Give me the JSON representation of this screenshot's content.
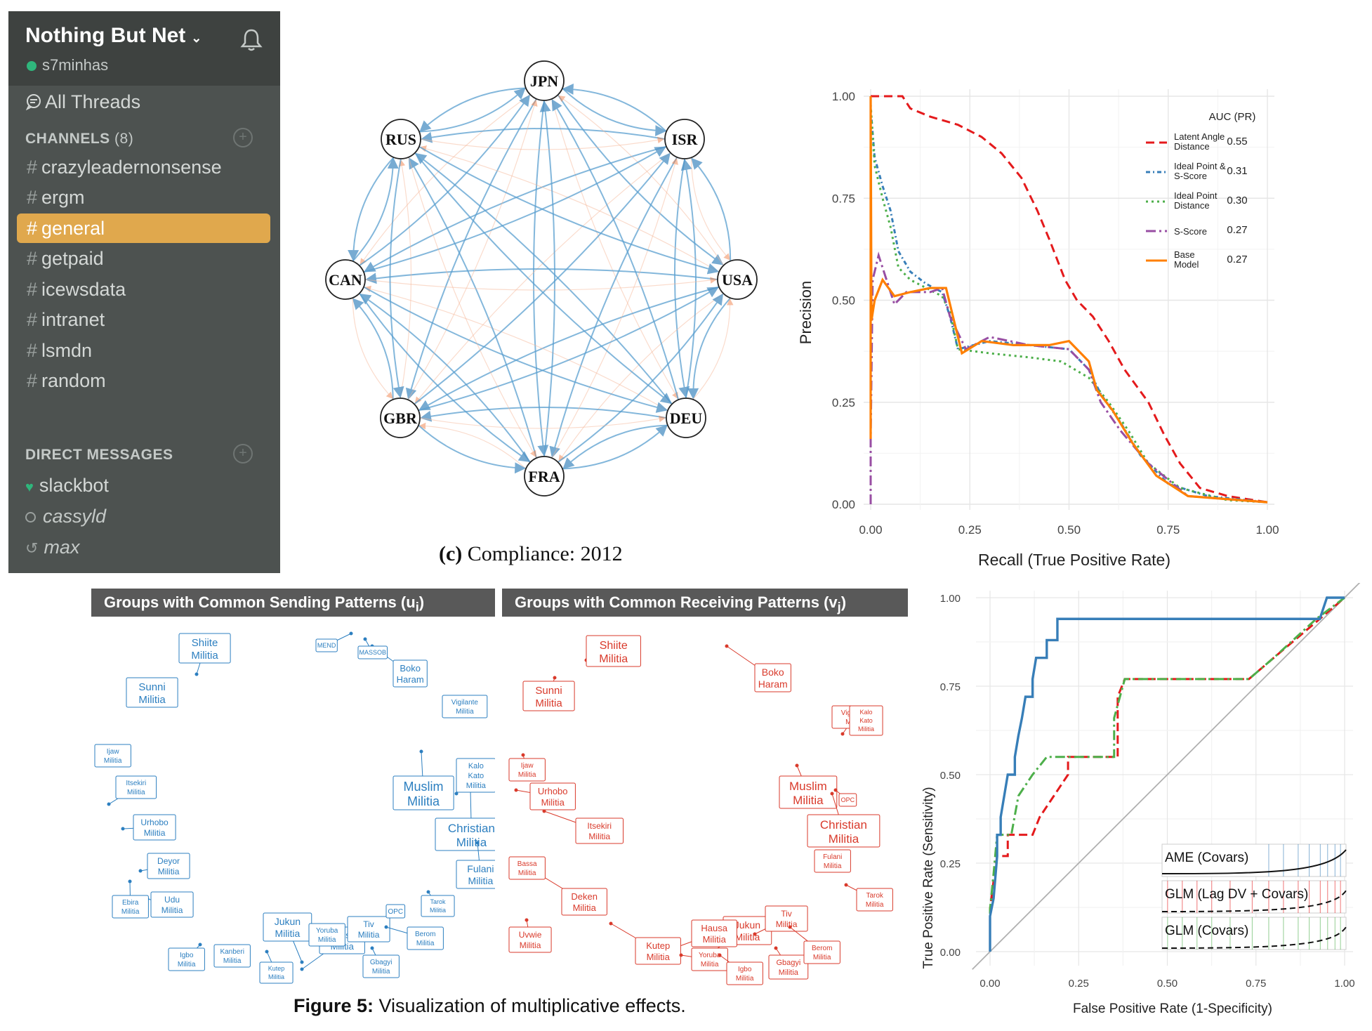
{
  "sidebar": {
    "team_name": "Nothing But Net",
    "team_caret": "⌄",
    "user": "s7minhas",
    "all_threads": "All Threads",
    "channels_label": "CHANNELS",
    "channels_count": "(8)",
    "channels": [
      {
        "name": "crazyleadernonsense",
        "active": false
      },
      {
        "name": "ergm",
        "active": false
      },
      {
        "name": "general",
        "active": true
      },
      {
        "name": "getpaid",
        "active": false
      },
      {
        "name": "icewsdata",
        "active": false
      },
      {
        "name": "intranet",
        "active": false
      },
      {
        "name": "lsmdn",
        "active": false
      },
      {
        "name": "random",
        "active": false
      }
    ],
    "dm_label": "DIRECT MESSAGES",
    "dms": [
      {
        "name": "slackbot",
        "status": "bot"
      },
      {
        "name": "cassyld",
        "status": "away"
      },
      {
        "name": "max",
        "status": "away"
      }
    ]
  },
  "network": {
    "caption_letter": "(c)",
    "caption_text": "Compliance: 2012",
    "nodes": [
      "JPN",
      "ISR",
      "USA",
      "DEU",
      "FRA",
      "GBR",
      "CAN",
      "RUS"
    ]
  },
  "pr_chart": {
    "ylabel": "Precision",
    "xlabel": "Recall (True Positive Rate)",
    "yticks": [
      "0.00",
      "0.25",
      "0.50",
      "0.75",
      "1.00"
    ],
    "xticks": [
      "0.00",
      "0.25",
      "0.50",
      "0.75",
      "1.00"
    ],
    "legend_title": "AUC (PR)",
    "legend": [
      {
        "line1": "Latent Angle",
        "line2": "Distance",
        "auc": "0.55",
        "color": "#e41a1c"
      },
      {
        "line1": "Ideal Point &",
        "line2": "S-Score",
        "auc": "0.31",
        "color": "#377eb8"
      },
      {
        "line1": "Ideal Point",
        "line2": "Distance",
        "auc": "0.30",
        "color": "#4daf4a"
      },
      {
        "line1": "S-Score",
        "line2": "",
        "auc": "0.27",
        "color": "#984ea3"
      },
      {
        "line1": "Base",
        "line2": "Model",
        "auc": "0.27",
        "color": "#ff7f00"
      }
    ]
  },
  "scatter": {
    "left_title": "Groups with Common Sending Patterns (u",
    "left_sub": "i",
    "right_title": "Groups with Common Receiving Patterns (v",
    "right_sub": "j",
    "labels_left": [
      {
        "text": "Shiite Militia"
      },
      {
        "text": "Sunni Militia"
      },
      {
        "text": "Boko Haram"
      },
      {
        "text": "Muslim Militia"
      },
      {
        "text": "Christian Militia"
      },
      {
        "text": "Fulani Militia"
      },
      {
        "text": "Ijaw Militia"
      },
      {
        "text": "Itsekiri Militia"
      },
      {
        "text": "Urhobo Militia"
      },
      {
        "text": "Deyor Militia"
      },
      {
        "text": "Udu Militia"
      },
      {
        "text": "Ebira Militia"
      },
      {
        "text": "Jukun Militia"
      },
      {
        "text": "Hausa Militia"
      },
      {
        "text": "Tiv Militia"
      },
      {
        "text": "Kutep Militia"
      },
      {
        "text": "Kanberi Militia"
      },
      {
        "text": "Igbo Militia"
      },
      {
        "text": "Gbagyi Militia"
      },
      {
        "text": "Berom Militia"
      },
      {
        "text": "Tarok Militia"
      },
      {
        "text": "Kalo Kato Militia"
      },
      {
        "text": "Vigilante Militia"
      },
      {
        "text": "Yoruba Militia"
      },
      {
        "text": "OPC"
      },
      {
        "text": "MEND"
      },
      {
        "text": "MASSOB"
      }
    ],
    "labels_right": [
      {
        "text": "Shiite Militia"
      },
      {
        "text": "Sunni Militia"
      },
      {
        "text": "Boko Haram"
      },
      {
        "text": "Muslim Militia"
      },
      {
        "text": "Christian Militia"
      },
      {
        "text": "Urhobo Militia"
      },
      {
        "text": "Itsekiri Militia"
      },
      {
        "text": "Deken Militia"
      },
      {
        "text": "Uvwie Militia"
      },
      {
        "text": "Jukun Militia"
      },
      {
        "text": "Hausa Militia"
      },
      {
        "text": "Tiv Militia"
      },
      {
        "text": "Kutep Militia"
      },
      {
        "text": "Yoruba Militia"
      },
      {
        "text": "Igbo Militia"
      },
      {
        "text": "Gbagyi Militia"
      },
      {
        "text": "Berom Militia"
      },
      {
        "text": "Tarok Militia"
      },
      {
        "text": "Fulani Militia"
      },
      {
        "text": "Vigilante Militia"
      },
      {
        "text": "Bassa Militia"
      },
      {
        "text": "Ijaw Militia"
      },
      {
        "text": "Kalo Kato Militia"
      },
      {
        "text": "OPC"
      }
    ]
  },
  "roc_chart": {
    "ylabel": "True Positive Rate (Sensitivity)",
    "xlabel": "False Positive Rate (1-Specificity)",
    "yticks": [
      "0.00",
      "0.25",
      "0.50",
      "0.75",
      "1.00"
    ],
    "xticks": [
      "0.00",
      "0.25",
      "0.50",
      "0.75",
      "1.00"
    ],
    "models": [
      {
        "name": "AME (Covars)",
        "color": "#377eb8"
      },
      {
        "name": "GLM (Lag DV + Covars)",
        "color": "#e41a1c"
      },
      {
        "name": "GLM (Covars)",
        "color": "#4daf4a"
      }
    ]
  },
  "figure_caption": {
    "label": "Figure 5:",
    "text": "Visualization of multiplicative effects."
  }
}
